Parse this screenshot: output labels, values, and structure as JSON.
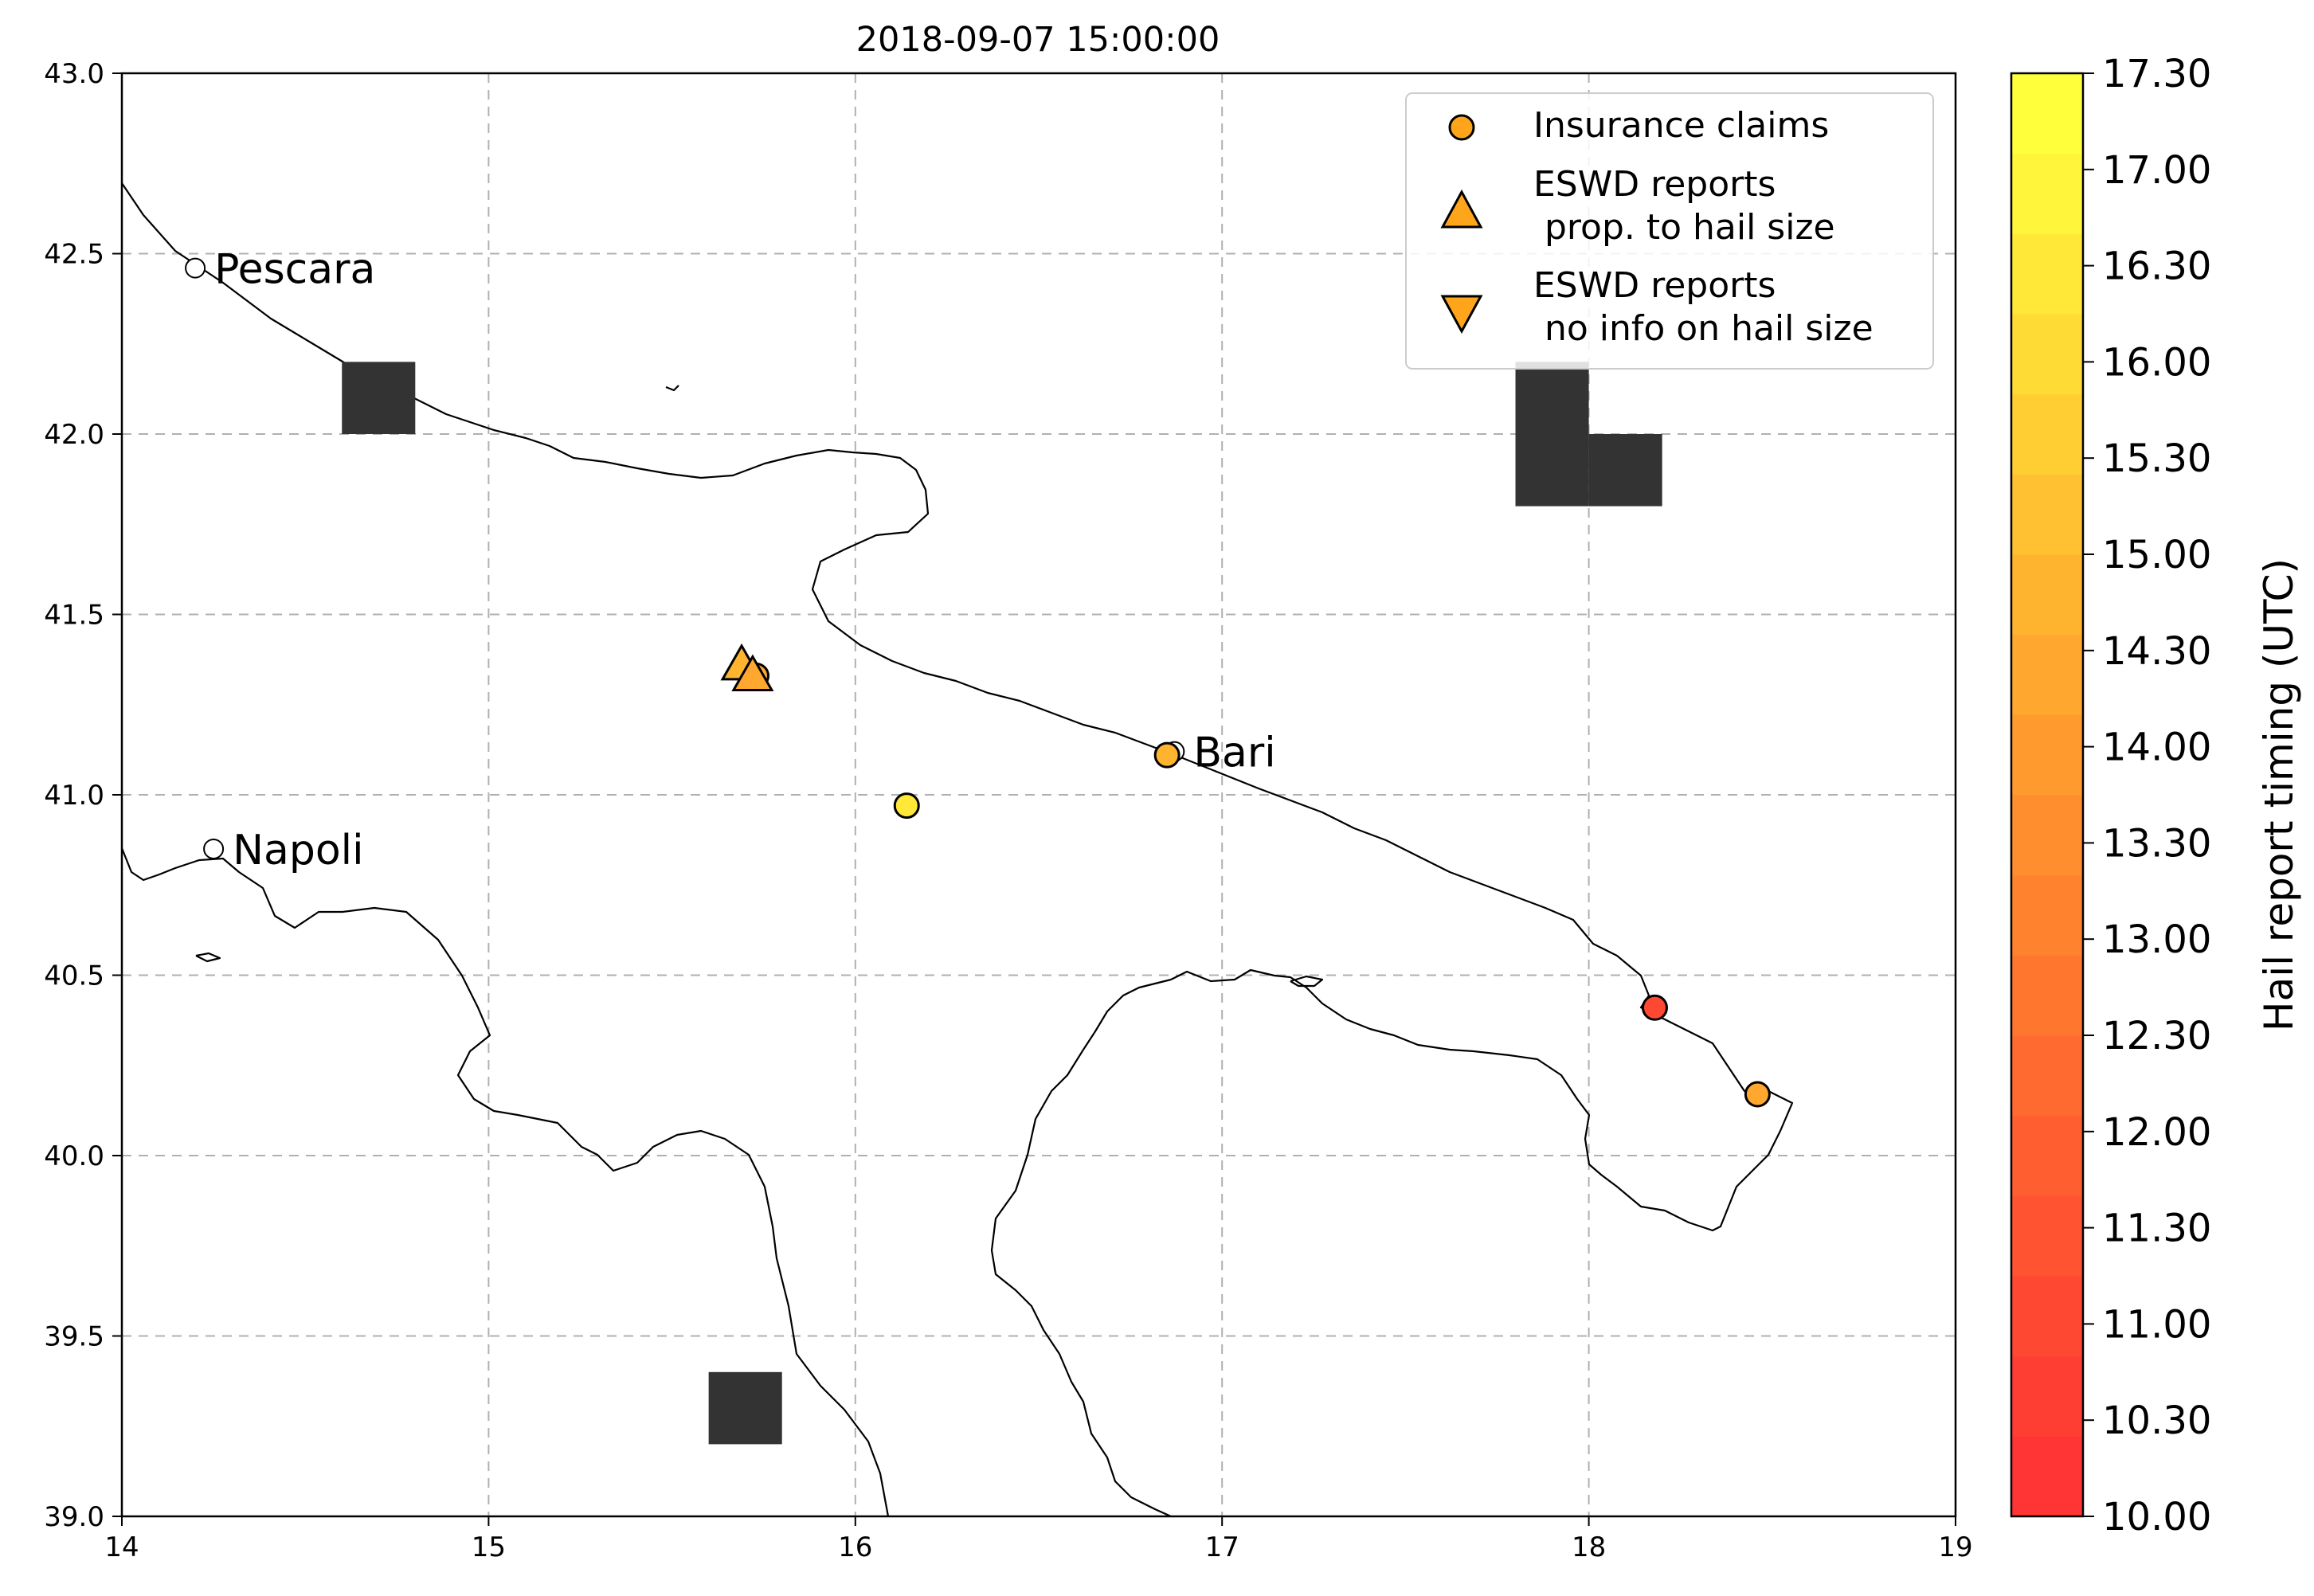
{
  "title": "2018-09-07 15:00:00",
  "map": {
    "x_ticks": [
      {
        "value": 14,
        "label": "14"
      },
      {
        "value": 15,
        "label": "15"
      },
      {
        "value": 16,
        "label": "16"
      },
      {
        "value": 17,
        "label": "17"
      },
      {
        "value": 18,
        "label": "18"
      },
      {
        "value": 19,
        "label": "19"
      }
    ],
    "y_ticks": [
      {
        "value": 39.0,
        "label": "39.0"
      },
      {
        "value": 39.5,
        "label": "39.5"
      },
      {
        "value": 40.0,
        "label": "40.0"
      },
      {
        "value": 40.5,
        "label": "40.5"
      },
      {
        "value": 41.0,
        "label": "41.0"
      },
      {
        "value": 41.5,
        "label": "41.5"
      },
      {
        "value": 42.0,
        "label": "42.0"
      },
      {
        "value": 42.5,
        "label": "42.5"
      },
      {
        "value": 43.0,
        "label": "43.0"
      }
    ],
    "xlim": [
      14,
      19
    ],
    "ylim": [
      39,
      43
    ],
    "grid": "dashed",
    "coastline_color": "#000000",
    "cities": [
      {
        "name": "Pescara",
        "lon": 14.2,
        "lat": 42.46
      },
      {
        "name": "Napoli",
        "lon": 14.25,
        "lat": 40.85
      },
      {
        "name": "Bari",
        "lon": 16.87,
        "lat": 41.12
      }
    ],
    "cells": [
      {
        "lon0": 14.6,
        "lat0": 42.0,
        "lon1": 14.8,
        "lat1": 42.2
      },
      {
        "lon0": 17.8,
        "lat0": 42.0,
        "lon1": 18.0,
        "lat1": 42.2
      },
      {
        "lon0": 17.8,
        "lat0": 41.8,
        "lon1": 18.0,
        "lat1": 42.0
      },
      {
        "lon0": 18.0,
        "lat0": 41.8,
        "lon1": 18.2,
        "lat1": 42.0
      },
      {
        "lon0": 15.6,
        "lat0": 39.2,
        "lon1": 15.8,
        "lat1": 39.4
      }
    ],
    "cell_color": "#333333",
    "insurance_claims": [
      {
        "lon": 15.73,
        "lat": 41.33,
        "time": 14.5
      },
      {
        "lon": 16.85,
        "lat": 41.11,
        "time": 14.7
      },
      {
        "lon": 16.14,
        "lat": 40.97,
        "time": 16.4
      },
      {
        "lon": 18.18,
        "lat": 40.41,
        "time": 11.0
      },
      {
        "lon": 18.46,
        "lat": 40.17,
        "time": 14.3
      }
    ],
    "eswd_reports": [
      {
        "lon": 15.69,
        "lat": 41.36,
        "time": 14.6
      },
      {
        "lon": 15.72,
        "lat": 41.33,
        "time": 14.5
      }
    ]
  },
  "legend": {
    "entries": [
      {
        "marker": "circle",
        "label_lines": [
          "Insurance claims"
        ]
      },
      {
        "marker": "triangle-up",
        "label_lines": [
          "ESWD reports",
          " prop. to hail size"
        ]
      },
      {
        "marker": "triangle-down",
        "label_lines": [
          "ESWD reports",
          " no info on hail size"
        ]
      }
    ],
    "marker_color": "#ffa51c",
    "placement": "top-right"
  },
  "colorbar": {
    "label": "Hail report timing (UTC)",
    "tick_labels": [
      "10.00",
      "10.30",
      "11.00",
      "11.30",
      "12.00",
      "12.30",
      "13.00",
      "13.30",
      "14.00",
      "14.30",
      "15.00",
      "15.30",
      "16.00",
      "16.30",
      "17.00",
      "17.30"
    ],
    "bands": [
      "#ff3434",
      "#ff3e33",
      "#ff4832",
      "#ff5331",
      "#ff5e30",
      "#ff6a30",
      "#ff762f",
      "#ff822e",
      "#ff8e2e",
      "#ff9a2e",
      "#ffa72f",
      "#ffb430",
      "#ffc131",
      "#ffce33",
      "#ffdb35",
      "#ffe838",
      "#fff53b",
      "#ffff3c"
    ]
  }
}
